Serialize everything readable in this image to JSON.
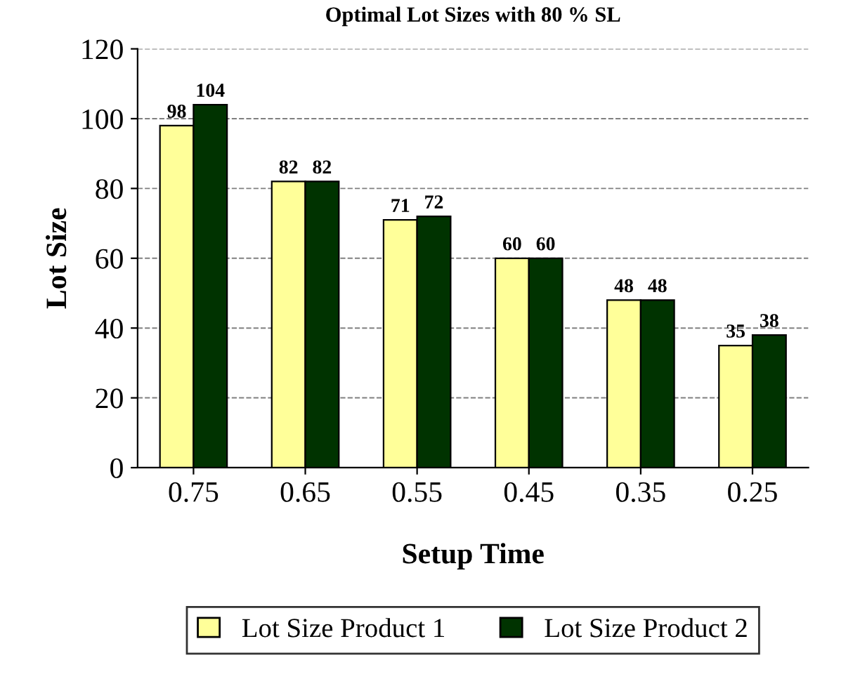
{
  "chart_data": {
    "type": "bar",
    "title": "Optimal Lot Sizes with 80 % SL",
    "xlabel": "Setup Time",
    "ylabel": "Lot Size",
    "categories": [
      "0.75",
      "0.65",
      "0.55",
      "0.45",
      "0.35",
      "0.25"
    ],
    "series": [
      {
        "name": "Lot Size Product 1",
        "color": "#ffff99",
        "values": [
          98,
          82,
          71,
          60,
          48,
          35
        ]
      },
      {
        "name": "Lot Size Product 2",
        "color": "#003300",
        "values": [
          104,
          82,
          72,
          60,
          48,
          38
        ]
      }
    ],
    "ylim": [
      0,
      120
    ],
    "yticks": [
      0,
      20,
      40,
      60,
      80,
      100,
      120
    ],
    "grid": "y",
    "legend": "bottom",
    "data_labels": true
  }
}
